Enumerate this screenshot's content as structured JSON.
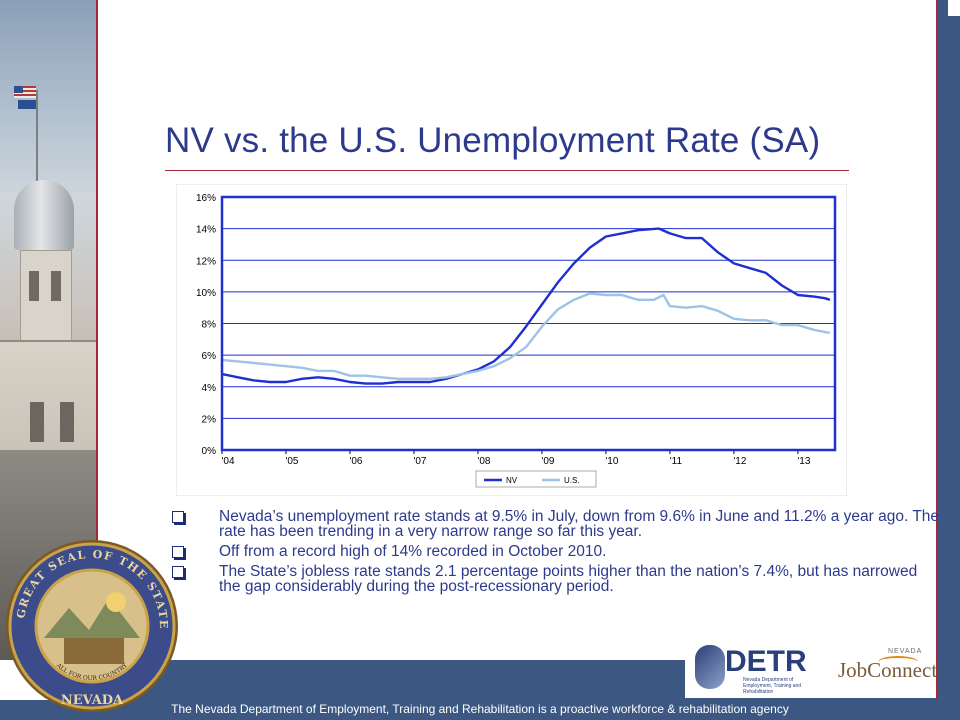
{
  "slide": {
    "title": "NV vs. the U.S. Unemployment Rate (SA)",
    "footer": "The Nevada Department of Employment, Training and Rehabilitation is a proactive workforce & rehabilitation agency",
    "bullets": [
      "Nevada’s unemployment rate stands at 9.5% in July, down from 9.6% in June and 11.2% a year ago.  The rate has been trending in a very narrow range so far this year.",
      "Off from a record high of 14% recorded in October 2010.",
      "The State’s jobless rate stands 2.1 percentage points higher than the nation’s 7.4%, but has narrowed the gap considerably during the post-recessionary period."
    ]
  },
  "logos": {
    "detr_name": "DETR",
    "detr_sub": "Nevada Department of Employment, Training and Rehabilitation",
    "jobconnect_top": "NEVADA",
    "jobconnect_name": "JobConnect",
    "seal_top_text": "THE GREAT SEAL OF THE STATE OF",
    "seal_bottom_text": "NEVADA",
    "seal_motto": "ALL FOR OUR COUNTRY"
  },
  "colors": {
    "title": "#2d3a8c",
    "accent_rule": "#a4283a",
    "footer_band": "#3b5782",
    "nv_series": "#1f2fd0",
    "us_series": "#9ec3e6",
    "plot_frame": "#1f2fd0"
  },
  "chart_data": {
    "type": "line",
    "title": "",
    "xlabel": "",
    "ylabel": "",
    "ylim": [
      0,
      16
    ],
    "yticks": [
      0,
      2,
      4,
      6,
      8,
      10,
      12,
      14,
      16
    ],
    "ytick_labels": [
      "0%",
      "2%",
      "4%",
      "6%",
      "8%",
      "10%",
      "12%",
      "14%",
      "16%"
    ],
    "xlim": [
      2004,
      2013.58
    ],
    "xticks": [
      2004,
      2005,
      2006,
      2007,
      2008,
      2009,
      2010,
      2011,
      2012,
      2013
    ],
    "xtick_labels": [
      "'04",
      "'05",
      "'06",
      "'07",
      "'08",
      "'09",
      "'10",
      "'11",
      "'12",
      "'13"
    ],
    "grid": true,
    "legend": "bottom",
    "series": [
      {
        "name": "NV",
        "color": "#1f2fd0",
        "points": [
          [
            2004.0,
            4.8
          ],
          [
            2004.25,
            4.6
          ],
          [
            2004.5,
            4.4
          ],
          [
            2004.75,
            4.3
          ],
          [
            2005.0,
            4.3
          ],
          [
            2005.25,
            4.5
          ],
          [
            2005.5,
            4.6
          ],
          [
            2005.75,
            4.5
          ],
          [
            2006.0,
            4.3
          ],
          [
            2006.25,
            4.2
          ],
          [
            2006.5,
            4.2
          ],
          [
            2006.75,
            4.3
          ],
          [
            2007.0,
            4.3
          ],
          [
            2007.25,
            4.3
          ],
          [
            2007.5,
            4.5
          ],
          [
            2007.75,
            4.8
          ],
          [
            2008.0,
            5.1
          ],
          [
            2008.25,
            5.6
          ],
          [
            2008.5,
            6.5
          ],
          [
            2008.75,
            7.8
          ],
          [
            2009.0,
            9.2
          ],
          [
            2009.25,
            10.6
          ],
          [
            2009.5,
            11.8
          ],
          [
            2009.75,
            12.8
          ],
          [
            2010.0,
            13.5
          ],
          [
            2010.25,
            13.7
          ],
          [
            2010.5,
            13.9
          ],
          [
            2010.83,
            14.0
          ],
          [
            2011.0,
            13.7
          ],
          [
            2011.25,
            13.4
          ],
          [
            2011.5,
            13.4
          ],
          [
            2011.75,
            12.5
          ],
          [
            2012.0,
            11.8
          ],
          [
            2012.25,
            11.5
          ],
          [
            2012.5,
            11.2
          ],
          [
            2012.75,
            10.4
          ],
          [
            2013.0,
            9.8
          ],
          [
            2013.25,
            9.7
          ],
          [
            2013.42,
            9.6
          ],
          [
            2013.5,
            9.5
          ]
        ]
      },
      {
        "name": "U.S.",
        "color": "#9ec3e6",
        "points": [
          [
            2004.0,
            5.7
          ],
          [
            2004.25,
            5.6
          ],
          [
            2004.5,
            5.5
          ],
          [
            2004.75,
            5.4
          ],
          [
            2005.0,
            5.3
          ],
          [
            2005.25,
            5.2
          ],
          [
            2005.5,
            5.0
          ],
          [
            2005.75,
            5.0
          ],
          [
            2006.0,
            4.7
          ],
          [
            2006.25,
            4.7
          ],
          [
            2006.5,
            4.6
          ],
          [
            2006.75,
            4.5
          ],
          [
            2007.0,
            4.5
          ],
          [
            2007.25,
            4.5
          ],
          [
            2007.5,
            4.6
          ],
          [
            2007.75,
            4.8
          ],
          [
            2008.0,
            5.0
          ],
          [
            2008.25,
            5.3
          ],
          [
            2008.5,
            5.8
          ],
          [
            2008.75,
            6.5
          ],
          [
            2009.0,
            7.8
          ],
          [
            2009.25,
            8.9
          ],
          [
            2009.5,
            9.5
          ],
          [
            2009.75,
            9.9
          ],
          [
            2010.0,
            9.8
          ],
          [
            2010.25,
            9.8
          ],
          [
            2010.5,
            9.5
          ],
          [
            2010.75,
            9.5
          ],
          [
            2010.9,
            9.8
          ],
          [
            2011.0,
            9.1
          ],
          [
            2011.25,
            9.0
          ],
          [
            2011.5,
            9.1
          ],
          [
            2011.75,
            8.8
          ],
          [
            2012.0,
            8.3
          ],
          [
            2012.25,
            8.2
          ],
          [
            2012.5,
            8.2
          ],
          [
            2012.75,
            7.9
          ],
          [
            2013.0,
            7.9
          ],
          [
            2013.25,
            7.6
          ],
          [
            2013.5,
            7.4
          ]
        ]
      }
    ]
  }
}
